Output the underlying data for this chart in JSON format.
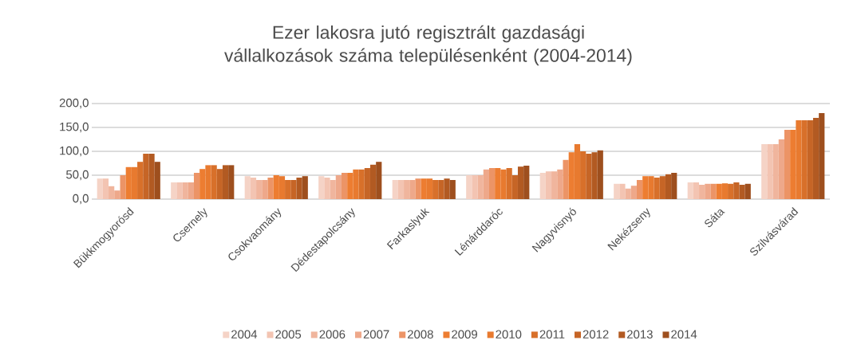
{
  "chart_data": {
    "type": "bar",
    "title": "Ezer lakosra jutó regisztrált gazdasági vállalkozások száma településenként (2004-2014)",
    "categories": [
      "Bükkmogyorósd",
      "Csernely",
      "Csokvaomány",
      "Dédestapolcsány",
      "Farkaslyuk",
      "Lénárddaróc",
      "Nagyvisnyó",
      "Nekézseny",
      "Sáta",
      "Szilvásvárad"
    ],
    "series": [
      {
        "name": "2004",
        "color": "#f5d3c6",
        "values": [
          43,
          35,
          48,
          48,
          40,
          50,
          55,
          32,
          35,
          115
        ]
      },
      {
        "name": "2005",
        "color": "#f3c4b2",
        "values": [
          43,
          35,
          45,
          45,
          40,
          50,
          58,
          32,
          35,
          115
        ]
      },
      {
        "name": "2006",
        "color": "#f0b59d",
        "values": [
          27,
          35,
          40,
          40,
          40,
          50,
          58,
          22,
          30,
          115
        ]
      },
      {
        "name": "2007",
        "color": "#eea88a",
        "values": [
          18,
          35,
          40,
          50,
          40,
          62,
          62,
          28,
          32,
          125
        ]
      },
      {
        "name": "2008",
        "color": "#ec9466",
        "values": [
          50,
          55,
          45,
          55,
          43,
          65,
          82,
          40,
          32,
          145
        ]
      },
      {
        "name": "2009",
        "color": "#ed7d31",
        "values": [
          67,
          63,
          50,
          55,
          43,
          65,
          98,
          48,
          32,
          145
        ]
      },
      {
        "name": "2010",
        "color": "#e87a2f",
        "values": [
          67,
          71,
          48,
          62,
          43,
          62,
          115,
          48,
          33,
          165
        ]
      },
      {
        "name": "2011",
        "color": "#d8702a",
        "values": [
          78,
          71,
          40,
          62,
          40,
          65,
          100,
          45,
          32,
          165
        ]
      },
      {
        "name": "2012",
        "color": "#c66526",
        "values": [
          95,
          63,
          40,
          65,
          40,
          50,
          95,
          48,
          35,
          165
        ]
      },
      {
        "name": "2013",
        "color": "#b25a22",
        "values": [
          95,
          71,
          45,
          72,
          43,
          68,
          98,
          52,
          30,
          170
        ]
      },
      {
        "name": "2014",
        "color": "#9e4f1e",
        "values": [
          78,
          71,
          48,
          78,
          40,
          70,
          102,
          55,
          32,
          180
        ]
      }
    ],
    "ylim": [
      0,
      200
    ],
    "yticks": [
      {
        "value": 0,
        "label": "0,0"
      },
      {
        "value": 50,
        "label": "50,0"
      },
      {
        "value": 100,
        "label": "100,0"
      },
      {
        "value": 150,
        "label": "150,0"
      },
      {
        "value": 200,
        "label": "200,0"
      }
    ],
    "grid": "y",
    "legend": "bottom"
  }
}
